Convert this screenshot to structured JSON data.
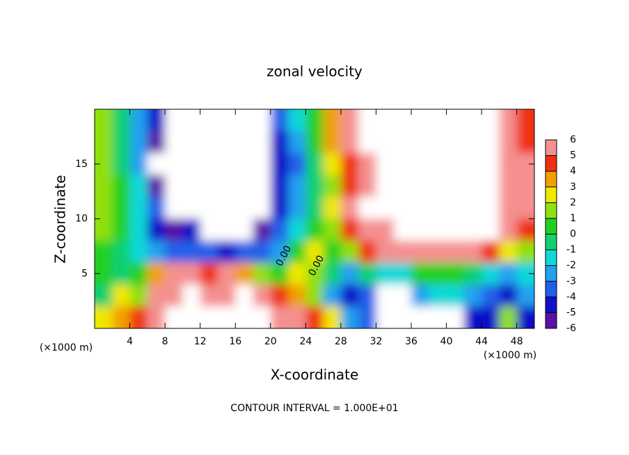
{
  "chart_data": {
    "type": "contourf",
    "title": "zonal velocity",
    "x_label": "X-coordinate",
    "y_label": "Z-coordinate",
    "x_unit_label": "(×1000 m)",
    "y_unit_label": "(×1000 m)",
    "footer": "CONTOUR INTERVAL = 1.000E+01",
    "contour_labels": [
      "0.00",
      "0.00"
    ],
    "xlim": [
      0,
      50
    ],
    "ylim": [
      0,
      20
    ],
    "xticks": [
      4,
      8,
      12,
      16,
      20,
      24,
      28,
      32,
      36,
      40,
      44,
      48
    ],
    "yticks": [
      5,
      10,
      15
    ],
    "x": [
      1,
      3,
      5,
      7,
      9,
      11,
      13,
      15,
      17,
      19,
      21,
      23,
      25,
      27,
      29,
      31,
      33,
      35,
      37,
      39,
      41,
      43,
      45,
      47,
      49
    ],
    "y": [
      19,
      17,
      15,
      13,
      11,
      9,
      7,
      5,
      3,
      1
    ],
    "values": [
      [
        1,
        -1,
        -3,
        -5,
        -7,
        -7,
        -7,
        -7,
        -7,
        -7,
        -4,
        -2,
        0,
        3,
        5,
        8,
        8,
        8,
        8,
        8,
        8,
        8,
        8,
        6,
        4
      ],
      [
        1,
        -1,
        -3,
        -6,
        -7,
        -7,
        -7,
        -7,
        -7,
        -7,
        -5,
        -3,
        0,
        3,
        5,
        8,
        8,
        8,
        8,
        8,
        8,
        8,
        8,
        6,
        4
      ],
      [
        1,
        -1,
        -3,
        -7,
        -7,
        -7,
        -7,
        -7,
        -7,
        -7,
        -5,
        -4,
        -1,
        2,
        4,
        6,
        8,
        8,
        8,
        8,
        8,
        8,
        8,
        6,
        5
      ],
      [
        1,
        0,
        -2,
        -6,
        -7,
        -7,
        -7,
        -7,
        -7,
        -7,
        -5,
        -3,
        -1,
        1,
        4,
        6,
        8,
        8,
        8,
        8,
        8,
        8,
        8,
        6,
        5
      ],
      [
        1,
        0,
        -2,
        -4,
        -7,
        -7,
        -7,
        -7,
        -7,
        -7,
        -5,
        -3,
        -1,
        2,
        5,
        7,
        8,
        8,
        8,
        8,
        8,
        8,
        8,
        6,
        5
      ],
      [
        1,
        0,
        -2,
        -5,
        -6,
        -5,
        -7,
        -7,
        -7,
        -6,
        -4,
        -2,
        0,
        1,
        4,
        5,
        6,
        7,
        8,
        8,
        8,
        8,
        7,
        5,
        4
      ],
      [
        0,
        -1,
        -2,
        -3,
        -4,
        -4,
        -4,
        -5,
        -4,
        -4,
        -3,
        0,
        2,
        0,
        1,
        4,
        5,
        5,
        5,
        5,
        5,
        5,
        4,
        2,
        1
      ],
      [
        0,
        -1,
        0,
        3,
        5,
        5,
        4,
        5,
        3,
        1,
        0,
        2,
        1,
        -1,
        -3,
        -1,
        -2,
        -2,
        0,
        0,
        0,
        -1,
        -2,
        -3,
        -2
      ],
      [
        -1,
        2,
        1,
        5,
        6,
        7,
        6,
        6,
        7,
        5,
        4,
        3,
        1,
        -3,
        -5,
        -4,
        -7,
        -7,
        -3,
        -2,
        -2,
        -3,
        -4,
        -5,
        -3
      ],
      [
        2,
        3,
        4,
        5,
        7,
        7,
        7,
        7,
        7,
        7,
        6,
        5,
        4,
        2,
        -3,
        -4,
        -7,
        -7,
        -7,
        -7,
        -7,
        -5,
        -5,
        1,
        -5
      ]
    ],
    "colorbar": {
      "ticks": [
        -6,
        -5,
        -4,
        -3,
        -2,
        -1,
        0,
        1,
        2,
        3,
        4,
        5,
        6
      ],
      "colors": [
        "#5a10a8",
        "#1010c8",
        "#2060e8",
        "#20a0f0",
        "#10d8d8",
        "#10d070",
        "#20d020",
        "#90e010",
        "#f0e800",
        "#f0a000",
        "#f03010",
        "#f49090"
      ]
    }
  }
}
